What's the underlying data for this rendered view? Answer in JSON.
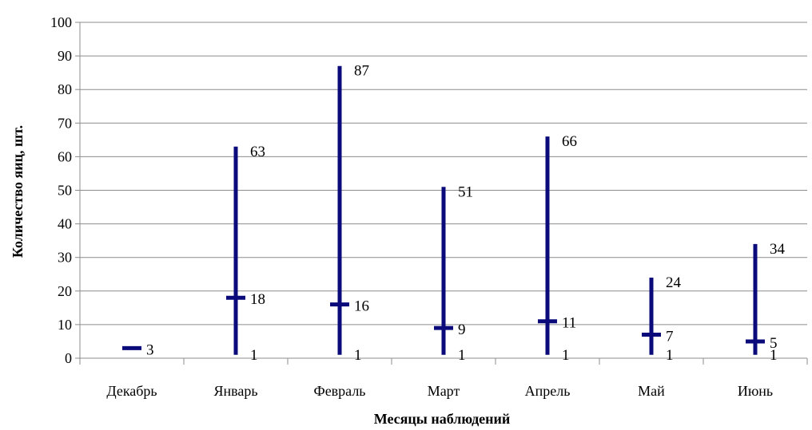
{
  "chart_data": {
    "type": "stock",
    "title": "",
    "xlabel": "Месяцы наблюдений",
    "ylabel": "Количество яиц, шт.",
    "ylim": [
      0,
      100
    ],
    "y_ticks": [
      "0",
      "10",
      "20",
      "30",
      "40",
      "50",
      "60",
      "70",
      "80",
      "90",
      "100"
    ],
    "grid": true,
    "categories": [
      "Декабрь",
      "Январь",
      "Февраль",
      "Март",
      "Апрель",
      "Май",
      "Июнь"
    ],
    "series": [
      {
        "values": [
          3,
          63,
          87,
          51,
          66,
          24,
          34
        ]
      },
      {
        "values": [
          3,
          1,
          1,
          1,
          1,
          1,
          1
        ]
      },
      {
        "values": [
          3,
          18,
          16,
          9,
          11,
          7,
          5
        ]
      }
    ],
    "data_labels": {
      "max": [
        "",
        "63",
        "87",
        "51",
        "66",
        "24",
        "34"
      ],
      "min": [
        "",
        "1",
        "1",
        "1",
        "1",
        "1",
        "1"
      ],
      "mean": [
        "3",
        "18",
        "16",
        "9",
        "11",
        "7",
        "5"
      ]
    },
    "colors": {
      "bar": "#0a0a7a",
      "grid": "#8c8c8c"
    }
  }
}
